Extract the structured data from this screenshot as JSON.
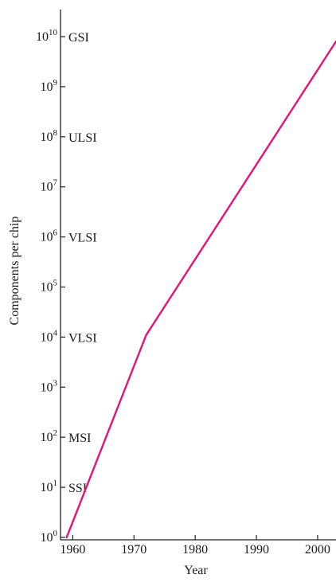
{
  "chart_data": {
    "type": "line",
    "title": "",
    "xlabel": "Year",
    "ylabel": "Components per chip",
    "yscale": "log",
    "grid": false,
    "legend": "none",
    "xlim": [
      1958,
      2003
    ],
    "ylim": [
      1,
      30000000000
    ],
    "x_ticks": [
      1960,
      1970,
      1980,
      1990,
      2000
    ],
    "x_tick_labels": [
      "1960",
      "1970",
      "1980",
      "1990",
      "2000"
    ],
    "y_ticks": [
      {
        "exp": "0",
        "value": 1
      },
      {
        "exp": "1",
        "value": 10
      },
      {
        "exp": "2",
        "value": 100
      },
      {
        "exp": "3",
        "value": 1000
      },
      {
        "exp": "4",
        "value": 10000
      },
      {
        "exp": "5",
        "value": 100000
      },
      {
        "exp": "6",
        "value": 1000000
      },
      {
        "exp": "7",
        "value": 10000000
      },
      {
        "exp": "8",
        "value": 100000000
      },
      {
        "exp": "9",
        "value": 1000000000
      },
      {
        "exp": "10",
        "value": 10000000000
      }
    ],
    "y_tick_base": "10",
    "integration_levels": [
      {
        "label": "SSI",
        "value": 10
      },
      {
        "label": "MSI",
        "value": 100
      },
      {
        "label": "VLSI",
        "value": 10000
      },
      {
        "label": "VLSI",
        "value": 1000000
      },
      {
        "label": "ULSI",
        "value": 100000000
      },
      {
        "label": "GSI",
        "value": 10000000000
      }
    ],
    "series": [
      {
        "color": "#e0157a",
        "points": [
          {
            "x": 1959,
            "y": 1
          },
          {
            "x": 1972,
            "y": 11000
          },
          {
            "x": 2003,
            "y": 8000000000
          }
        ]
      }
    ]
  }
}
